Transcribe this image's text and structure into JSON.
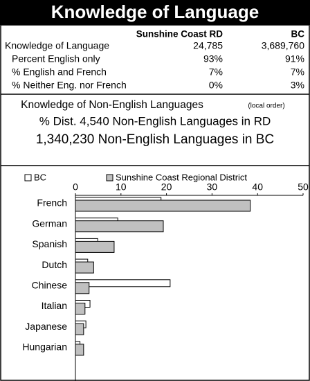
{
  "header": {
    "title": "Knowledge of Language"
  },
  "table": {
    "columns": [
      "Sunshine Coast RD",
      "BC"
    ],
    "rows": [
      [
        "Knowledge of Language",
        "24,785",
        "3,689,760"
      ],
      [
        "Percent English only",
        "93%",
        "91%"
      ],
      [
        "% English and French",
        "7%",
        "7%"
      ],
      [
        "% Neither Eng. nor French",
        "0%",
        "3%"
      ]
    ]
  },
  "subheadings": {
    "line1": "Knowledge of Non-English Languages",
    "line1_note": "(local order)",
    "line2": "% Dist. 4,540 Non-English Languages in RD",
    "line3": "1,340,230 Non-English Languages in BC"
  },
  "chart_data": {
    "type": "hbar",
    "categories": [
      "French",
      "German",
      "Spanish",
      "Dutch",
      "Chinese",
      "Italian",
      "Japanese",
      "Hungarian"
    ],
    "series": [
      {
        "name": "BC",
        "color": "#ffffff",
        "values": [
          18.8,
          9.3,
          4.9,
          2.7,
          20.8,
          3.2,
          2.3,
          1.0
        ]
      },
      {
        "name": "Sunshine Coast Regional District",
        "color": "#c0c0c0",
        "values": [
          38.4,
          19.3,
          8.5,
          4.0,
          3.0,
          2.1,
          1.8,
          1.8
        ]
      }
    ],
    "xlim": [
      0,
      50
    ],
    "xticks": [
      0,
      10,
      20,
      30,
      40,
      50
    ]
  }
}
